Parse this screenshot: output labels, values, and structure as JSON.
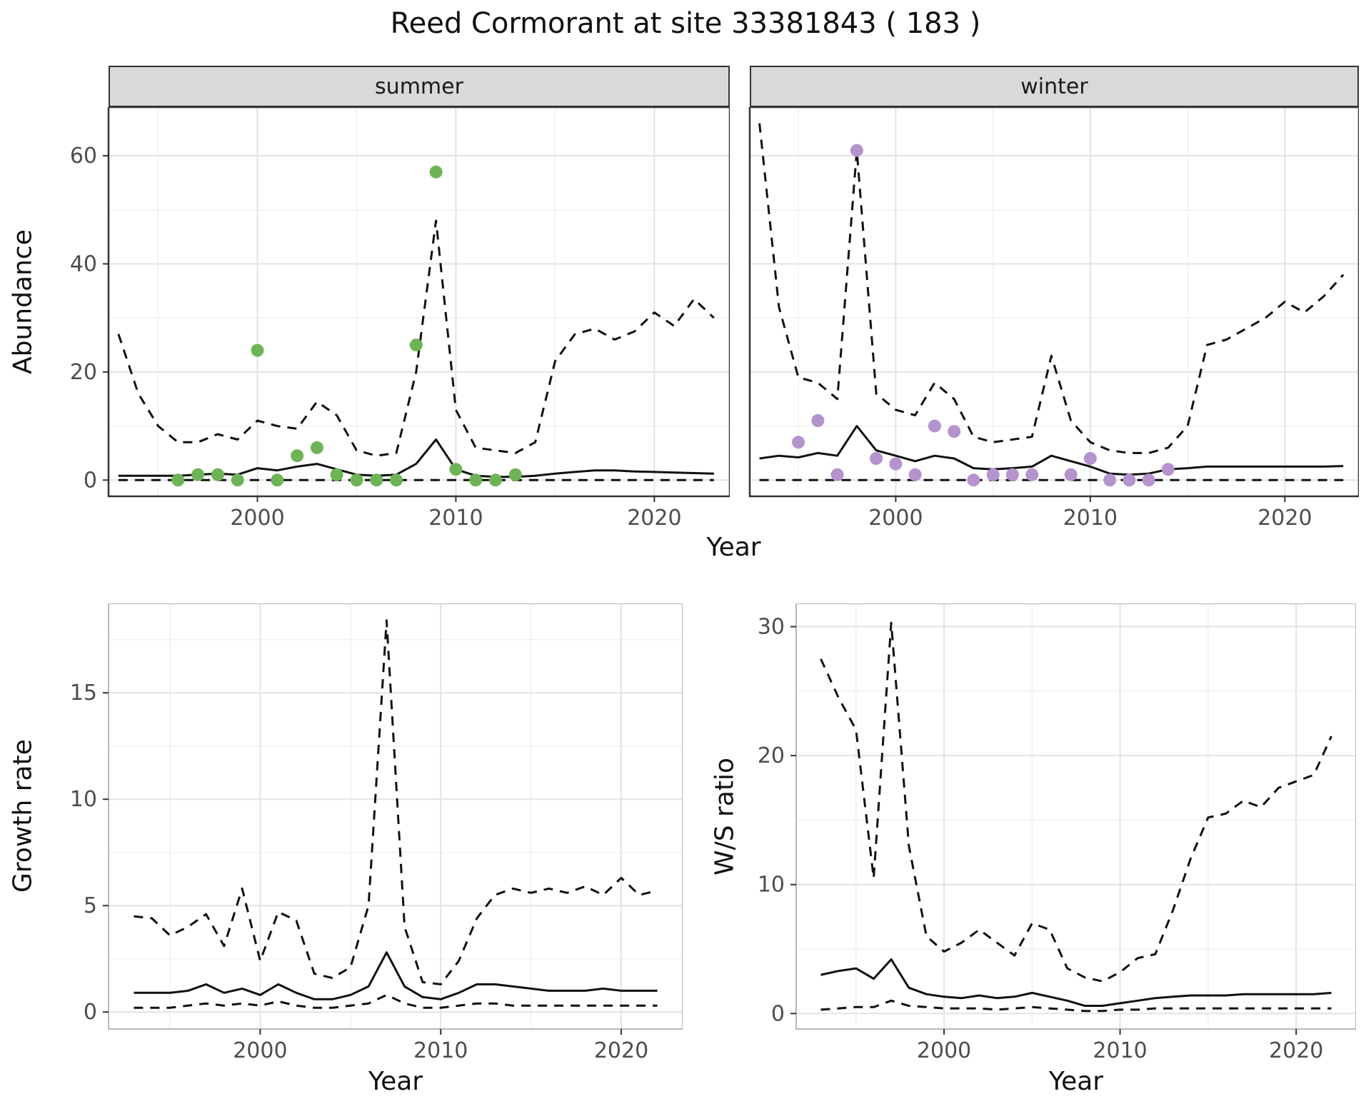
{
  "title": "Reed Cormorant at site 33381843 ( 183 )",
  "facets": {
    "summer": "summer",
    "winter": "winter"
  },
  "axis_labels": {
    "abundance": "Abundance",
    "year": "Year",
    "growth_rate": "Growth rate",
    "ws_ratio": "W/S ratio"
  },
  "colors": {
    "summer_points": "#6db554",
    "winter_points": "#b493ce",
    "line": "#111111",
    "strip_background": "#d9d9d9",
    "major_grid": "#e3e3e3",
    "minor_grid": "#f0f0f0",
    "top_panel_border": "#333333",
    "bottom_panel_border": "#b8b8b8",
    "tick_text": "#4d4d4d"
  },
  "chart_data": [
    {
      "id": "abundance-summer",
      "type": "line",
      "facet": "summer",
      "title": "summer",
      "xlabel": "Year",
      "ylabel": "Abundance",
      "xlim": [
        1992.5,
        2023.8
      ],
      "ylim": [
        -3,
        69
      ],
      "xticks": [
        2000,
        2010,
        2020
      ],
      "xticks_minor": [
        1995,
        2005,
        2015
      ],
      "yticks": [
        0,
        20,
        40,
        60
      ],
      "yticks_minor": [
        10,
        30,
        50
      ],
      "grid": true,
      "legend": "none",
      "x": [
        1993,
        1994,
        1995,
        1996,
        1997,
        1998,
        1999,
        2000,
        2001,
        2002,
        2003,
        2004,
        2005,
        2006,
        2007,
        2008,
        2009,
        2010,
        2011,
        2012,
        2013,
        2014,
        2015,
        2016,
        2017,
        2018,
        2019,
        2020,
        2021,
        2022,
        2023
      ],
      "series": [
        {
          "name": "modelled-median",
          "style": "solid",
          "values": [
            0.8,
            0.8,
            0.8,
            0.8,
            1.0,
            1.2,
            1.0,
            2.2,
            1.8,
            2.5,
            3.0,
            2.0,
            1.0,
            0.8,
            1.0,
            3.0,
            7.5,
            2.0,
            0.8,
            0.6,
            0.6,
            0.8,
            1.2,
            1.5,
            1.8,
            1.8,
            1.6,
            1.5,
            1.4,
            1.3,
            1.2
          ]
        },
        {
          "name": "upper-ci",
          "style": "dashed",
          "values": [
            27,
            16,
            10,
            7,
            7,
            8.5,
            7.5,
            11,
            10,
            9.5,
            14.5,
            12,
            5.5,
            4.5,
            5,
            20,
            48,
            13,
            6,
            5.5,
            5,
            7,
            22,
            27,
            28,
            26,
            27.5,
            31,
            28.5,
            33.5,
            30
          ]
        },
        {
          "name": "lower-ci",
          "style": "dashed",
          "values": [
            0,
            0,
            0,
            0,
            0,
            0,
            0,
            0,
            0,
            0,
            0,
            0,
            0,
            0,
            0,
            0,
            0,
            0,
            0,
            0,
            0,
            0,
            0,
            0,
            0,
            0,
            0,
            0,
            0,
            0,
            0
          ]
        },
        {
          "name": "observed-counts",
          "style": "points",
          "color_key": "summer_points",
          "x": [
            1996,
            1997,
            1998,
            1999,
            2000,
            2001,
            2002,
            2003,
            2004,
            2005,
            2006,
            2007,
            2008,
            2009,
            2010,
            2011,
            2012,
            2013
          ],
          "values": [
            0,
            1,
            1,
            0,
            24,
            0,
            4.5,
            6,
            1,
            0,
            0,
            0,
            25,
            57,
            2,
            0,
            0,
            1
          ]
        }
      ]
    },
    {
      "id": "abundance-winter",
      "type": "line",
      "facet": "winter",
      "title": "winter",
      "xlabel": "Year",
      "ylabel": "Abundance",
      "xlim": [
        1992.5,
        2023.8
      ],
      "ylim": [
        -3,
        69
      ],
      "xticks": [
        2000,
        2010,
        2020
      ],
      "xticks_minor": [
        1995,
        2005,
        2015
      ],
      "yticks": [
        0,
        20,
        40,
        60
      ],
      "yticks_minor": [
        10,
        30,
        50
      ],
      "grid": true,
      "legend": "none",
      "x": [
        1993,
        1994,
        1995,
        1996,
        1997,
        1998,
        1999,
        2000,
        2001,
        2002,
        2003,
        2004,
        2005,
        2006,
        2007,
        2008,
        2009,
        2010,
        2011,
        2012,
        2013,
        2014,
        2015,
        2016,
        2017,
        2018,
        2019,
        2020,
        2021,
        2022,
        2023
      ],
      "series": [
        {
          "name": "modelled-median",
          "style": "solid",
          "values": [
            4.0,
            4.5,
            4.2,
            5.0,
            4.5,
            10,
            5.5,
            4.5,
            3.5,
            4.5,
            4.0,
            2.2,
            2.0,
            2.2,
            2.5,
            4.5,
            3.5,
            2.5,
            1.2,
            1.0,
            1.2,
            2.0,
            2.2,
            2.5,
            2.5,
            2.5,
            2.5,
            2.5,
            2.5,
            2.5,
            2.6
          ]
        },
        {
          "name": "upper-ci",
          "style": "dashed",
          "values": [
            66,
            32,
            19,
            18,
            15,
            61,
            16,
            13,
            12,
            18,
            15,
            8,
            7,
            7.5,
            8,
            23,
            11,
            7,
            5.5,
            5,
            5,
            6,
            10,
            25,
            26,
            28,
            30,
            33,
            31,
            34,
            38
          ]
        },
        {
          "name": "lower-ci",
          "style": "dashed",
          "values": [
            0,
            0,
            0,
            0,
            0,
            0,
            0,
            0,
            0,
            0,
            0,
            0,
            0,
            0,
            0,
            0,
            0,
            0,
            0,
            0,
            0,
            0,
            0,
            0,
            0,
            0,
            0,
            0,
            0,
            0,
            0
          ]
        },
        {
          "name": "observed-counts",
          "style": "points",
          "color_key": "winter_points",
          "x": [
            1995,
            1996,
            1997,
            1998,
            1999,
            2000,
            2001,
            2002,
            2003,
            2004,
            2005,
            2006,
            2007,
            2009,
            2010,
            2011,
            2012,
            2013,
            2014
          ],
          "values": [
            7,
            11,
            1,
            61,
            4,
            3,
            1,
            10,
            9,
            0,
            1,
            1,
            1,
            1,
            4,
            0,
            0,
            0,
            2
          ]
        }
      ]
    },
    {
      "id": "growth-rate",
      "type": "line",
      "xlabel": "Year",
      "ylabel": "Growth rate",
      "xlim": [
        1991.6,
        2023.4
      ],
      "ylim": [
        -0.8,
        19.2
      ],
      "xticks": [
        2000,
        2010,
        2020
      ],
      "xticks_minor": [
        1995,
        2005,
        2015
      ],
      "yticks": [
        0,
        5,
        10,
        15
      ],
      "yticks_minor": [
        2.5,
        7.5,
        12.5,
        17.5
      ],
      "grid": true,
      "legend": "none",
      "x": [
        1993,
        1994,
        1995,
        1996,
        1997,
        1998,
        1999,
        2000,
        2001,
        2002,
        2003,
        2004,
        2005,
        2006,
        2007,
        2008,
        2009,
        2010,
        2011,
        2012,
        2013,
        2014,
        2015,
        2016,
        2017,
        2018,
        2019,
        2020,
        2021,
        2022
      ],
      "series": [
        {
          "name": "modelled-median",
          "style": "solid",
          "values": [
            0.9,
            0.9,
            0.9,
            1.0,
            1.3,
            0.9,
            1.1,
            0.8,
            1.3,
            0.9,
            0.6,
            0.6,
            0.8,
            1.2,
            2.8,
            1.2,
            0.7,
            0.6,
            0.9,
            1.3,
            1.3,
            1.2,
            1.1,
            1.0,
            1.0,
            1.0,
            1.1,
            1.0,
            1.0,
            1.0
          ]
        },
        {
          "name": "upper-ci",
          "style": "dashed",
          "values": [
            4.5,
            4.4,
            3.6,
            4.0,
            4.6,
            3.1,
            5.8,
            2.4,
            4.7,
            4.3,
            1.8,
            1.6,
            2.1,
            5.0,
            18.4,
            4.0,
            1.4,
            1.3,
            2.4,
            4.4,
            5.5,
            5.8,
            5.6,
            5.8,
            5.6,
            5.9,
            5.5,
            6.3,
            5.5,
            5.7
          ]
        },
        {
          "name": "lower-ci",
          "style": "dashed",
          "values": [
            0.2,
            0.2,
            0.2,
            0.3,
            0.4,
            0.3,
            0.4,
            0.3,
            0.5,
            0.3,
            0.2,
            0.2,
            0.3,
            0.4,
            0.8,
            0.4,
            0.2,
            0.2,
            0.3,
            0.4,
            0.4,
            0.3,
            0.3,
            0.3,
            0.3,
            0.3,
            0.3,
            0.3,
            0.3,
            0.3
          ]
        }
      ]
    },
    {
      "id": "ws-ratio",
      "type": "line",
      "xlabel": "Year",
      "ylabel": "W/S ratio",
      "xlim": [
        1991.6,
        2023.4
      ],
      "ylim": [
        -1.2,
        31.8
      ],
      "xticks": [
        2000,
        2010,
        2020
      ],
      "xticks_minor": [
        1995,
        2005,
        2015
      ],
      "yticks": [
        0,
        10,
        20,
        30
      ],
      "yticks_minor": [
        5,
        15,
        25
      ],
      "grid": true,
      "legend": "none",
      "x": [
        1993,
        1994,
        1995,
        1996,
        1997,
        1998,
        1999,
        2000,
        2001,
        2002,
        2003,
        2004,
        2005,
        2006,
        2007,
        2008,
        2009,
        2010,
        2011,
        2012,
        2013,
        2014,
        2015,
        2016,
        2017,
        2018,
        2019,
        2020,
        2021,
        2022
      ],
      "series": [
        {
          "name": "modelled-median",
          "style": "solid",
          "values": [
            3.0,
            3.3,
            3.5,
            2.7,
            4.2,
            2.0,
            1.5,
            1.3,
            1.2,
            1.4,
            1.2,
            1.3,
            1.6,
            1.3,
            1.0,
            0.6,
            0.6,
            0.8,
            1.0,
            1.2,
            1.3,
            1.4,
            1.4,
            1.4,
            1.5,
            1.5,
            1.5,
            1.5,
            1.5,
            1.6
          ]
        },
        {
          "name": "upper-ci",
          "style": "dashed",
          "values": [
            27.5,
            24.5,
            22,
            10.5,
            30.3,
            13,
            6,
            4.8,
            5.5,
            6.5,
            5.5,
            4.5,
            7,
            6.5,
            3.5,
            2.8,
            2.5,
            3.2,
            4.3,
            4.6,
            8,
            12,
            15.2,
            15.5,
            16.5,
            16,
            17.5,
            18,
            18.5,
            21.5
          ]
        },
        {
          "name": "lower-ci",
          "style": "dashed",
          "values": [
            0.3,
            0.4,
            0.5,
            0.5,
            1.0,
            0.6,
            0.5,
            0.4,
            0.4,
            0.4,
            0.3,
            0.4,
            0.5,
            0.4,
            0.3,
            0.2,
            0.2,
            0.3,
            0.3,
            0.4,
            0.4,
            0.4,
            0.4,
            0.4,
            0.4,
            0.4,
            0.4,
            0.4,
            0.4,
            0.4
          ]
        }
      ]
    }
  ]
}
